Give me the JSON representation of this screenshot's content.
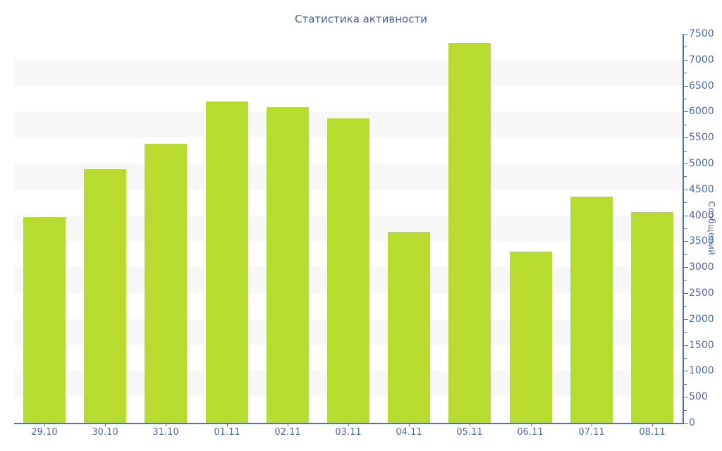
{
  "chart_data": {
    "type": "bar",
    "title": "Статистика активности",
    "ylabel": "Сообщений",
    "xlabel": "",
    "categories": [
      "29.10",
      "30.10",
      "31.10",
      "01.11",
      "02.11",
      "03.11",
      "04.11",
      "05.11",
      "06.11",
      "07.11",
      "08.11"
    ],
    "values": [
      3970,
      4890,
      5380,
      6190,
      6090,
      5870,
      3680,
      7320,
      3300,
      4360,
      4060
    ],
    "series_name": "Сообщений",
    "ylim": [
      0,
      7500
    ],
    "tick_interval": 500,
    "minor_tick_interval": 250,
    "legend": "none",
    "grid": "alternating horizontal bands every 500 units",
    "axis_position": "y-axis on right, x-axis on bottom",
    "colors": {
      "bar": "#b7dc2f",
      "band": "#f7f7f7",
      "background": "#ffffff",
      "axis": "#5271ae",
      "text": "#4d68a6",
      "title": "#41629e"
    }
  }
}
